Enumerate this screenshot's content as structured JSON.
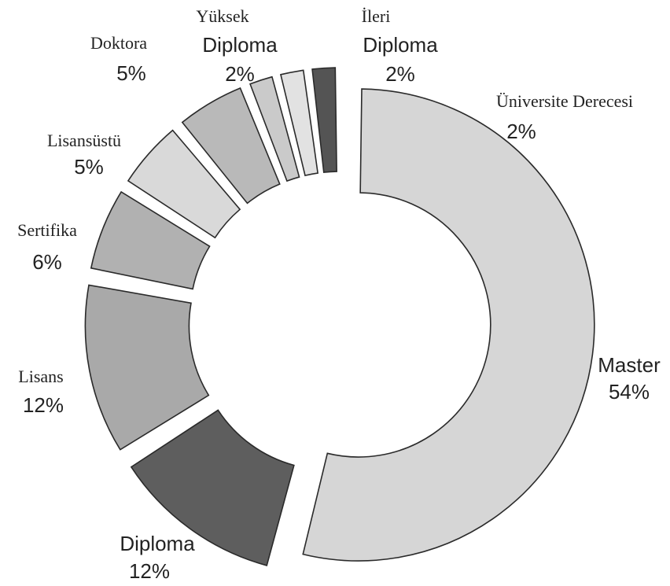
{
  "chart_data": {
    "type": "pie",
    "donut": true,
    "title": "",
    "slices": [
      {
        "label": "Master",
        "value": 54,
        "display": "54%",
        "color": "#d6d6d6"
      },
      {
        "label": "Diploma",
        "value": 12,
        "display": "12%",
        "color": "#5e5e5e"
      },
      {
        "label": "Lisans",
        "value": 12,
        "display": "12%",
        "color": "#a9a9a9"
      },
      {
        "label": "Sertifika",
        "value": 6,
        "display": "6%",
        "color": "#b1b1b1"
      },
      {
        "label": "Lisansüstü",
        "value": 5,
        "display": "5%",
        "color": "#d9d9d9"
      },
      {
        "label": "Doktora",
        "value": 5,
        "display": "5%",
        "color": "#b9b9b9"
      },
      {
        "label": "Yüksek Diploma",
        "value": 2,
        "display": "2%",
        "color": "#cacaca"
      },
      {
        "label": "İleri Diploma",
        "value": 2,
        "display": "2%",
        "color": "#e2e2e2"
      },
      {
        "label": "Üniversite Derecesi",
        "value": 2,
        "display": "2%",
        "color": "#545454"
      }
    ]
  }
}
